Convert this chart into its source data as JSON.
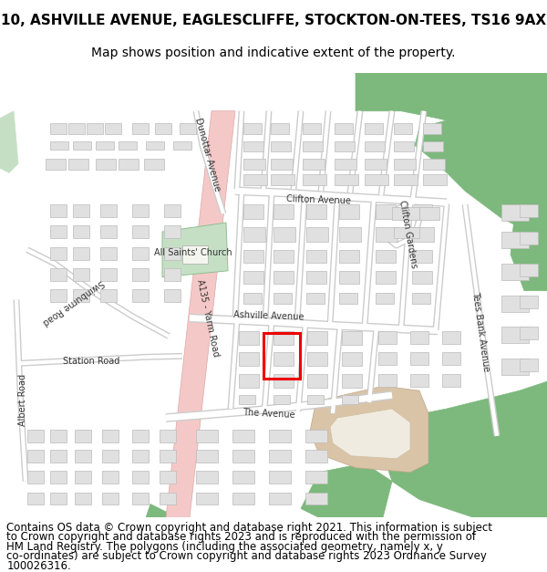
{
  "title_line1": "10, ASHVILLE AVENUE, EAGLESCLIFFE, STOCKTON-ON-TEES, TS16 9AX",
  "title_line2": "Map shows position and indicative extent of the property.",
  "footer_text": "Contains OS data © Crown copyright and database right 2021. This information is subject to Crown copyright and database rights 2023 and is reproduced with the permission of HM Land Registry. The polygons (including the associated geometry, namely x, y co-ordinates) are subject to Crown copyright and database rights 2023 Ordnance Survey 100026316.",
  "map_bg": "#f2f2ee",
  "road_color": "#ffffff",
  "road_outline": "#cccccc",
  "main_road_fill": "#f5c8c8",
  "main_road_outline": "#dba8a8",
  "green_dark": "#7db87d",
  "green_light": "#c5dfc5",
  "building_color": "#e0e0e0",
  "building_outline": "#bbbbbb",
  "tan_color": "#d9c4a8",
  "tan_outline": "#c0a888",
  "red_box_color": "#ee0000",
  "title_fontsize": 11,
  "subtitle_fontsize": 10,
  "footer_fontsize": 8.5,
  "label_fontsize": 7,
  "label_color": "#333333"
}
